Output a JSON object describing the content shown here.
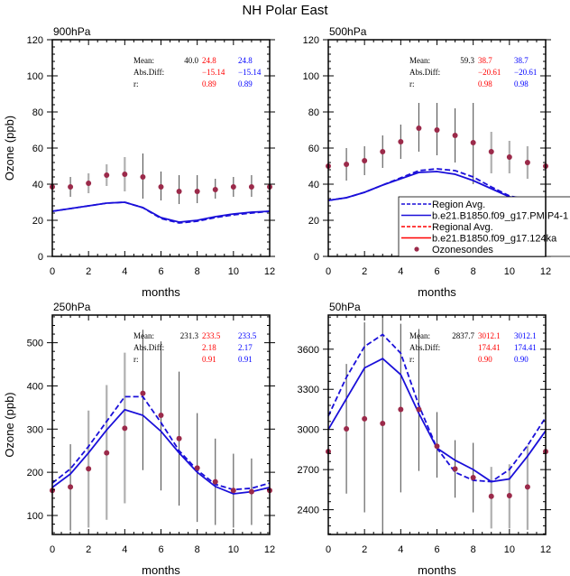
{
  "figure_title": "NH Polar East",
  "colors": {
    "model_blue": "#1a0fd9",
    "model_red": "#ff0000",
    "obs": "#9b2a4a",
    "err_dark": "#555555",
    "err_light": "#b0b0b0",
    "stat_black": "#000000",
    "stat_red": "#ff0000",
    "stat_blue": "#0000ff"
  },
  "legend": {
    "placement": "right-edge, lower half of 500hPa panel",
    "entries": [
      {
        "label": "Region Avg.",
        "style": "dashed",
        "color": "#1a0fd9"
      },
      {
        "label": "b.e21.B1850.f09_g17.PMIP4-1",
        "style": "solid",
        "color": "#1a0fd9"
      },
      {
        "label": "Regional Avg.",
        "style": "dashed",
        "color": "#ff0000"
      },
      {
        "label": "b.e21.B1850.f09_g17.124ka",
        "style": "solid",
        "color": "#ff0000"
      },
      {
        "label": "Ozonesondes",
        "style": "marker",
        "color": "#9b2a4a"
      }
    ]
  },
  "stats_labels": {
    "mean": "Mean:",
    "absdiff": "Abs.Diff:",
    "r": "r:"
  },
  "chart_data": [
    {
      "type": "line",
      "title": "900hPa",
      "xlabel": "months",
      "ylabel": "Ozone (ppb)",
      "xlim": [
        0,
        12
      ],
      "ylim": [
        0,
        120
      ],
      "xticks": [
        0,
        2,
        4,
        6,
        8,
        10,
        12
      ],
      "yticks": [
        0,
        20,
        40,
        60,
        80,
        100,
        120
      ],
      "x": [
        0,
        1,
        2,
        3,
        4,
        5,
        6,
        7,
        8,
        9,
        10,
        11,
        12
      ],
      "series": [
        {
          "name": "Region Avg. (dashed)",
          "values": [
            25,
            26.5,
            28,
            29.5,
            30,
            27,
            21,
            18.5,
            19.5,
            21.5,
            23,
            24,
            25
          ]
        },
        {
          "name": "b.e21.B1850.f09_g17.PMIP4-1",
          "values": [
            25,
            26.5,
            28,
            29.5,
            30,
            27,
            21.5,
            19,
            20,
            22,
            23.5,
            24.5,
            25
          ]
        }
      ],
      "obs": {
        "values": [
          38.5,
          38.5,
          40.5,
          45,
          45.5,
          44,
          38.5,
          36,
          36,
          37,
          38.5,
          38.5,
          38.5
        ],
        "err_low": [
          38.5,
          33,
          35,
          39,
          36,
          32,
          31,
          29,
          29.5,
          32,
          33,
          33,
          38.5
        ],
        "err_high": [
          38.5,
          44,
          46,
          51,
          55,
          57,
          47,
          45,
          45,
          43,
          44,
          45,
          38.5
        ],
        "err_light": [
          false,
          false,
          true,
          true,
          true,
          false,
          false,
          false,
          false,
          false,
          false,
          false,
          false
        ]
      },
      "stats": {
        "mean_obs": "40.0",
        "mean_red": "24.8",
        "mean_blue": "24.8",
        "absdiff_red": "−15.14",
        "absdiff_blue": "−15.14",
        "r_red": "0.89",
        "r_blue": "0.89"
      }
    },
    {
      "type": "line",
      "title": "500hPa",
      "xlabel": "months",
      "ylabel": "",
      "xlim": [
        0,
        12
      ],
      "ylim": [
        0,
        120
      ],
      "xticks": [
        0,
        2,
        4,
        6,
        8,
        10,
        12
      ],
      "yticks": [
        0,
        20,
        40,
        60,
        80,
        100,
        120
      ],
      "x": [
        0,
        1,
        2,
        3,
        4,
        5,
        6,
        7,
        8,
        9,
        10,
        11,
        12
      ],
      "series": [
        {
          "name": "Region Avg. (dashed)",
          "values": [
            31,
            32.5,
            35.5,
            39.5,
            43.5,
            47.5,
            48.5,
            47.5,
            44,
            38.5,
            33.5,
            31.5,
            31
          ]
        },
        {
          "name": "b.e21.B1850.f09_g17.PMIP4-1",
          "values": [
            31,
            32.5,
            35.5,
            39.5,
            43,
            46.5,
            47,
            45.5,
            42,
            37.5,
            33,
            31.5,
            31
          ]
        }
      ],
      "obs": {
        "values": [
          50,
          51,
          53,
          58,
          63.5,
          71,
          70,
          67,
          63,
          58,
          55,
          52,
          50
        ],
        "err_low": [
          50,
          42,
          45,
          49,
          54,
          58,
          56,
          52,
          40,
          46,
          46,
          43,
          50
        ],
        "err_high": [
          50,
          60,
          61,
          67,
          73,
          85,
          85,
          82,
          85,
          69,
          64,
          61,
          50
        ],
        "err_light": [
          false,
          false,
          false,
          false,
          false,
          false,
          false,
          false,
          false,
          true,
          true,
          true,
          false
        ]
      },
      "stats": {
        "mean_obs": "59.3",
        "mean_red": "38.7",
        "mean_blue": "38.7",
        "absdiff_red": "−20.61",
        "absdiff_blue": "−20.61",
        "r_red": "0.98",
        "r_blue": "0.98"
      }
    },
    {
      "type": "line",
      "title": "250hPa",
      "xlabel": "months",
      "ylabel": "Ozone (ppb)",
      "xlim": [
        0,
        12
      ],
      "ylim": [
        56,
        564
      ],
      "xticks": [
        0,
        2,
        4,
        6,
        8,
        10,
        12
      ],
      "yticks": [
        100,
        200,
        300,
        400,
        500
      ],
      "x": [
        0,
        1,
        2,
        3,
        4,
        5,
        6,
        7,
        8,
        9,
        10,
        11,
        12
      ],
      "series": [
        {
          "name": "Region Avg. (dashed)",
          "values": [
            175,
            208,
            260,
            318,
            375,
            375,
            315,
            250,
            205,
            172,
            160,
            163,
            175
          ]
        },
        {
          "name": "b.e21.B1850.f09_g17.PMIP4-1",
          "values": [
            165,
            196,
            245,
            298,
            345,
            332,
            295,
            245,
            200,
            167,
            150,
            155,
            165
          ]
        }
      ],
      "obs": {
        "values": [
          158,
          166,
          208,
          245,
          302,
          383,
          332,
          278,
          210,
          178,
          158,
          155,
          158
        ],
        "err_low": [
          158,
          65,
          72,
          90,
          128,
          205,
          158,
          123,
          85,
          78,
          72,
          78,
          158
        ],
        "err_high": [
          158,
          265,
          343,
          402,
          477,
          530,
          503,
          433,
          337,
          278,
          243,
          232,
          158
        ],
        "err_light": [
          false,
          false,
          true,
          true,
          true,
          false,
          false,
          false,
          false,
          false,
          false,
          false,
          false
        ]
      },
      "stats": {
        "mean_obs": "231.3",
        "mean_red": "233.5",
        "mean_blue": "233.5",
        "absdiff_red": "2.18",
        "absdiff_blue": "2.17",
        "r_red": "0.91",
        "r_blue": "0.91"
      }
    },
    {
      "type": "line",
      "title": "50hPa",
      "xlabel": "months",
      "ylabel": "",
      "xlim": [
        0,
        12
      ],
      "ylim": [
        2215,
        3855
      ],
      "xticks": [
        0,
        2,
        4,
        6,
        8,
        10,
        12
      ],
      "yticks": [
        2400,
        2700,
        3000,
        3300,
        3600
      ],
      "x": [
        0,
        1,
        2,
        3,
        4,
        5,
        6,
        7,
        8,
        9,
        10,
        11,
        12
      ],
      "series": [
        {
          "name": "Region Avg. (dashed)",
          "values": [
            3100,
            3390,
            3620,
            3710,
            3570,
            3180,
            2860,
            2680,
            2620,
            2610,
            2700,
            2880,
            3090
          ]
        },
        {
          "name": "b.e21.B1850.f09_g17.PMIP4-1",
          "values": [
            3000,
            3230,
            3460,
            3530,
            3410,
            3120,
            2860,
            2770,
            2700,
            2610,
            2630,
            2800,
            2990
          ]
        }
      ],
      "obs": {
        "values": [
          2835,
          3005,
          3080,
          3045,
          3150,
          3150,
          2875,
          2705,
          2640,
          2500,
          2505,
          2570,
          2835
        ],
        "err_low": [
          2835,
          2520,
          2380,
          2215,
          2530,
          2690,
          2640,
          2490,
          2380,
          2260,
          2260,
          2250,
          2835
        ],
        "err_high": [
          2835,
          3490,
          3800,
          3855,
          3790,
          3750,
          3130,
          2920,
          2900,
          2720,
          2740,
          2880,
          2835
        ],
        "err_light": [
          false,
          false,
          false,
          false,
          false,
          false,
          false,
          false,
          false,
          true,
          true,
          true,
          false
        ]
      },
      "stats": {
        "mean_obs": "2837.7",
        "mean_red": "3012.1",
        "mean_blue": "3012.1",
        "absdiff_red": "174.41",
        "absdiff_blue": "174.41",
        "r_red": "0.90",
        "r_blue": "0.90"
      }
    }
  ]
}
